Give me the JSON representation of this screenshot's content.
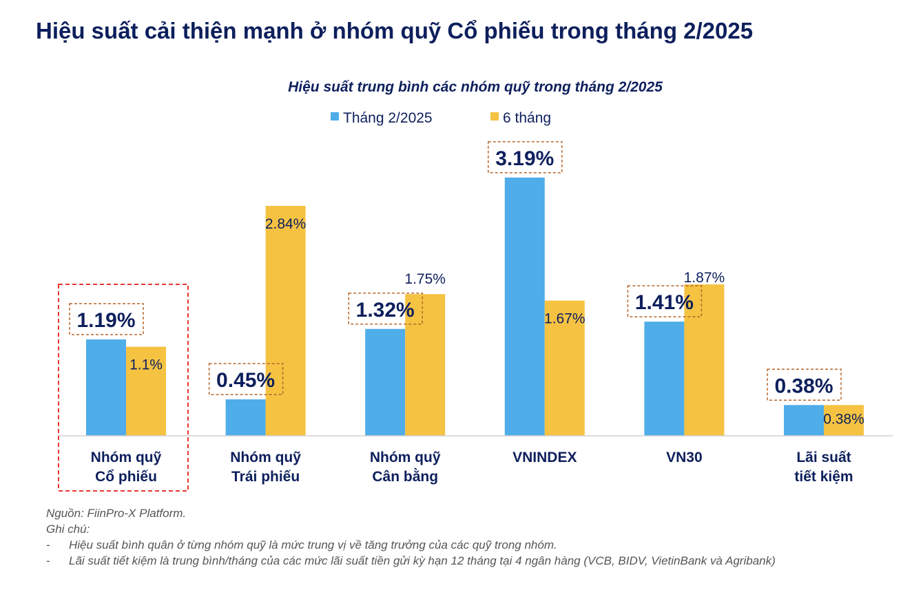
{
  "title": "Hiệu suất cải thiện mạnh ở nhóm quỹ Cổ phiếu trong tháng 2/2025",
  "chart_data": {
    "type": "bar",
    "title": "Hiệu suất trung bình các nhóm quỹ trong tháng 2/2025",
    "categories": [
      [
        "Nhóm quỹ",
        "Cổ phiếu"
      ],
      [
        "Nhóm quỹ",
        "Trái phiếu"
      ],
      [
        "Nhóm quỹ",
        "Cân bằng"
      ],
      [
        "VNINDEX"
      ],
      [
        "VN30"
      ],
      [
        "Lãi suất",
        "tiết kiệm"
      ]
    ],
    "series": [
      {
        "name": "Tháng 2/2025",
        "values": [
          1.19,
          0.45,
          1.32,
          3.19,
          1.41,
          0.38
        ],
        "labels": [
          "1.19%",
          "0.45%",
          "1.32%",
          "3.19%",
          "1.41%",
          "0.38%"
        ],
        "color": "#4fade9"
      },
      {
        "name": "6 tháng",
        "values": [
          1.1,
          2.84,
          1.75,
          1.67,
          1.87,
          0.38
        ],
        "labels": [
          "1.1%",
          "2.84%",
          "1.75%",
          "1.67%",
          "1.87%",
          "0.38%"
        ],
        "color": "#f5c242"
      }
    ],
    "unit": "%",
    "ylim": [
      0,
      3.19
    ],
    "grid": false,
    "legend": "top-center",
    "highlighted_category": "Nhóm quỹ Cổ phiếu"
  },
  "notes": {
    "source": "Nguồn: FiinPro-X Platform.",
    "heading": "Ghi chú:",
    "bullet": "-",
    "items": [
      "Hiệu suất bình quân ở từng nhóm quỹ là mức trung vị về tăng trưởng của các quỹ trong nhóm.",
      "Lãi suất tiết kiệm là trung bình/tháng của các mức lãi suất tiền gửi kỳ hạn 12 tháng tại 4 ngân hàng (VCB, BIDV, VietinBank và Agribank)"
    ]
  }
}
